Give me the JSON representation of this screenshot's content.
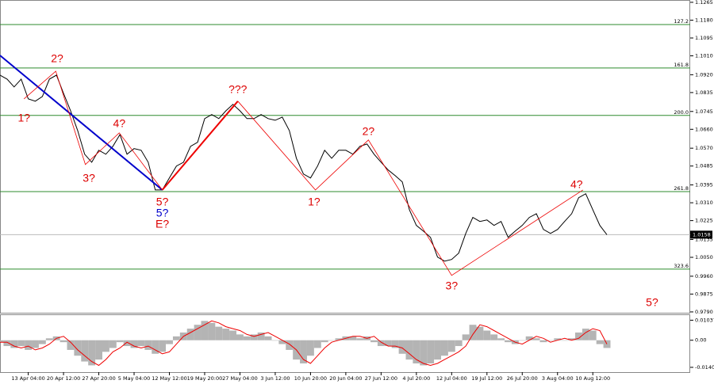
{
  "chart_data": {
    "type": "line",
    "price": {
      "color": "#000000",
      "values": [
        1.0918,
        1.0899,
        1.0862,
        1.0899,
        1.0805,
        1.0794,
        1.0816,
        1.0899,
        1.0918,
        1.0831,
        1.0748,
        1.0654,
        1.0541,
        1.0503,
        1.056,
        1.0541,
        1.0579,
        1.0635,
        1.0541,
        1.0568,
        1.056,
        1.0503,
        1.0371,
        1.0371,
        1.0428,
        1.0485,
        1.0503,
        1.0579,
        1.0598,
        1.0711,
        1.073,
        1.0711,
        1.0748,
        1.0779,
        1.0748,
        1.0711,
        1.0711,
        1.073,
        1.0711,
        1.0703,
        1.0718,
        1.0654,
        1.0522,
        1.0447,
        1.0428,
        1.0485,
        1.056,
        1.0522,
        1.056,
        1.056,
        1.0541,
        1.0579,
        1.059,
        1.0541,
        1.0503,
        1.0466,
        1.0439,
        1.0409,
        1.0277,
        1.0202,
        1.0175,
        1.0145,
        1.0051,
        1.0032,
        1.004,
        1.007,
        1.0164,
        1.024,
        1.0221,
        1.0228,
        1.0202,
        1.0221,
        1.0145,
        1.0175,
        1.0202,
        1.024,
        1.0258,
        1.0183,
        1.0164,
        1.0183,
        1.0221,
        1.0258,
        1.0334,
        1.0353,
        1.0277,
        1.0202,
        1.0158
      ]
    },
    "xlim": [
      0,
      97.8
    ],
    "xticks": [
      {
        "value": 4,
        "label": "13 Apr 04:00"
      },
      {
        "value": 9,
        "label": "20 Apr 12:00"
      },
      {
        "value": 14,
        "label": "27 Apr 20:00"
      },
      {
        "value": 19,
        "label": "5 May 04:00"
      },
      {
        "value": 24,
        "label": "12 May 12:00"
      },
      {
        "value": 29,
        "label": "19 May 20:00"
      },
      {
        "value": 34,
        "label": "27 May 04:00"
      },
      {
        "value": 39,
        "label": "3 Jun 12:00"
      },
      {
        "value": 44,
        "label": "10 Jun 20:00"
      },
      {
        "value": 49,
        "label": "20 Jun 04:00"
      },
      {
        "value": 54,
        "label": "27 Jun 12:00"
      },
      {
        "value": 59,
        "label": "4 Jul 20:00"
      },
      {
        "value": 64,
        "label": "12 Jul 04:00"
      },
      {
        "value": 69,
        "label": "19 Jul 12:00"
      },
      {
        "value": 74,
        "label": "26 Jul 20:00"
      },
      {
        "value": 79,
        "label": "3 Aug 04:00"
      },
      {
        "value": 84,
        "label": "10 Aug 12:00"
      }
    ],
    "ylim": [
      0.9786,
      1.1276
    ],
    "yticks": [
      1.1265,
      {
        "value": 1.118,
        "label": "1.1180"
      },
      1.1095,
      {
        "value": 1.101,
        "label": "1.1010"
      },
      {
        "value": 1.092,
        "label": "1.0920"
      },
      1.0835,
      1.0745,
      {
        "value": 1.066,
        "label": "1.0660"
      },
      {
        "value": 1.057,
        "label": "1.0570"
      },
      1.0485,
      1.0395,
      {
        "value": 1.031,
        "label": "1.0310"
      },
      1.0225,
      1.0135,
      {
        "value": 1.005,
        "label": "1.0050"
      },
      {
        "value": 0.996,
        "label": "0.9960"
      },
      0.9875,
      {
        "value": 0.979,
        "label": "0.9790"
      }
    ],
    "current_price": 1.0158,
    "fib_levels": [
      {
        "label": "127.2",
        "value": 1.1159
      },
      {
        "label": "161.8",
        "value": 1.0952
      },
      {
        "label": "200.0",
        "value": 1.0726
      },
      {
        "label": "261.8",
        "value": 1.0363
      },
      {
        "label": "323.6",
        "value": 0.9994
      }
    ],
    "fib_color": "#2e8b2e",
    "wave_lines": [
      {
        "color": "#0000cc",
        "width": 2,
        "points": [
          [
            0,
            1.1012
          ],
          [
            23,
            1.0371
          ]
        ]
      },
      {
        "color": "#ee0000",
        "width": 2,
        "points": [
          [
            23,
            1.0371
          ],
          [
            33.7,
            1.0794
          ]
        ]
      },
      {
        "color": "#ee0000",
        "width": 0.8,
        "points": [
          [
            3.4,
            1.0805
          ],
          [
            7.9,
            1.0937
          ],
          [
            12.1,
            1.0492
          ],
          [
            16.9,
            1.0643
          ],
          [
            23,
            1.0371
          ]
        ]
      },
      {
        "color": "#ee0000",
        "width": 0.8,
        "points": [
          [
            33.7,
            1.0794
          ],
          [
            44.7,
            1.0371
          ],
          [
            52.2,
            1.0609
          ],
          [
            64,
            0.9964
          ],
          [
            82.6,
            1.0371
          ]
        ]
      }
    ],
    "annotations": [
      {
        "text": "1?",
        "x": 3.4,
        "y": 1.0711,
        "color": "#dd0000"
      },
      {
        "text": "2?",
        "x": 8.1,
        "y": 1.0994,
        "color": "#dd0000"
      },
      {
        "text": "3?",
        "x": 12.6,
        "y": 1.0424,
        "color": "#dd0000"
      },
      {
        "text": "4?",
        "x": 16.9,
        "y": 1.0684,
        "color": "#dd0000"
      },
      {
        "text": "5?",
        "x": 23,
        "y": 1.0311,
        "color": "#dd0000"
      },
      {
        "text": "5?",
        "x": 23,
        "y": 1.0258,
        "color": "#0000cc"
      },
      {
        "text": "E?",
        "x": 23,
        "y": 1.0206,
        "color": "#dd0000"
      },
      {
        "text": "???",
        "x": 33.7,
        "y": 1.0847,
        "color": "#dd0000"
      },
      {
        "text": "1?",
        "x": 44.5,
        "y": 1.0311,
        "color": "#dd0000"
      },
      {
        "text": "2?",
        "x": 52.2,
        "y": 1.0647,
        "color": "#dd0000"
      },
      {
        "text": "3?",
        "x": 64,
        "y": 0.9912,
        "color": "#dd0000"
      },
      {
        "text": "4?",
        "x": 81.7,
        "y": 1.0394,
        "color": "#dd0000"
      },
      {
        "text": "5?",
        "x": 92.4,
        "y": 0.9832,
        "color": "#dd0000"
      }
    ],
    "oscillator": {
      "ylim": [
        -0.0165,
        0.013
      ],
      "yticks": [
        {
          "value": 0.01037,
          "label": "0.01037"
        },
        {
          "value": 0,
          "label": "0.00"
        },
        {
          "value": -0.01402,
          "label": "-0.01402"
        }
      ],
      "histogram": {
        "color": "#b4b4b4",
        "values": [
          -0.001,
          -0.003,
          -0.004,
          -0.003,
          -0.005,
          -0.004,
          -0.002,
          0.001,
          0.002,
          -0.001,
          -0.005,
          -0.008,
          -0.011,
          -0.013,
          -0.01,
          -0.006,
          -0.004,
          -0.001,
          -0.003,
          -0.004,
          -0.003,
          -0.005,
          -0.007,
          -0.006,
          -0.002,
          0.002,
          0.004,
          0.006,
          0.008,
          0.01,
          0.009,
          0.007,
          0.006,
          0.005,
          0.003,
          0.002,
          0.003,
          0.004,
          0.002,
          0,
          -0.002,
          -0.005,
          -0.01,
          -0.012,
          -0.008,
          -0.004,
          -0.001,
          0,
          0.001,
          0.002,
          0.002,
          0.001,
          0.002,
          -0.001,
          -0.003,
          -0.003,
          -0.004,
          -0.007,
          -0.01,
          -0.012,
          -0.013,
          -0.012,
          -0.01,
          -0.008,
          -0.006,
          -0.003,
          0.003,
          0.008,
          0.007,
          0.005,
          0.003,
          0.001,
          -0.001,
          -0.002,
          0,
          0.002,
          0.001,
          -0.001,
          0,
          0.001,
          0,
          0.001,
          0.004,
          0.006,
          0.005,
          -0.002,
          -0.004
        ]
      },
      "signal": {
        "color": "#ee0000",
        "values": [
          -0.001,
          -0.001,
          -0.003,
          -0.004,
          -0.003,
          -0.005,
          -0.004,
          -0.002,
          0.001,
          0.002,
          -0.001,
          -0.005,
          -0.008,
          -0.011,
          -0.013,
          -0.01,
          -0.006,
          -0.004,
          -0.001,
          -0.003,
          -0.004,
          -0.003,
          -0.005,
          -0.007,
          -0.006,
          -0.002,
          0.002,
          0.004,
          0.006,
          0.008,
          0.01,
          0.009,
          0.007,
          0.006,
          0.005,
          0.003,
          0.002,
          0.003,
          0.004,
          0.002,
          0,
          -0.002,
          -0.005,
          -0.01,
          -0.012,
          -0.008,
          -0.004,
          -0.001,
          0,
          0.001,
          0.002,
          0.002,
          0.001,
          0.002,
          -0.001,
          -0.003,
          -0.003,
          -0.004,
          -0.007,
          -0.01,
          -0.012,
          -0.013,
          -0.012,
          -0.01,
          -0.008,
          -0.006,
          -0.003,
          0.003,
          0.008,
          0.007,
          0.005,
          0.003,
          0.001,
          -0.001,
          -0.002,
          0,
          0.002,
          0.001,
          -0.001,
          0,
          0.001,
          0,
          0.001,
          0.004,
          0.006,
          0.005,
          -0.002
        ]
      }
    }
  }
}
